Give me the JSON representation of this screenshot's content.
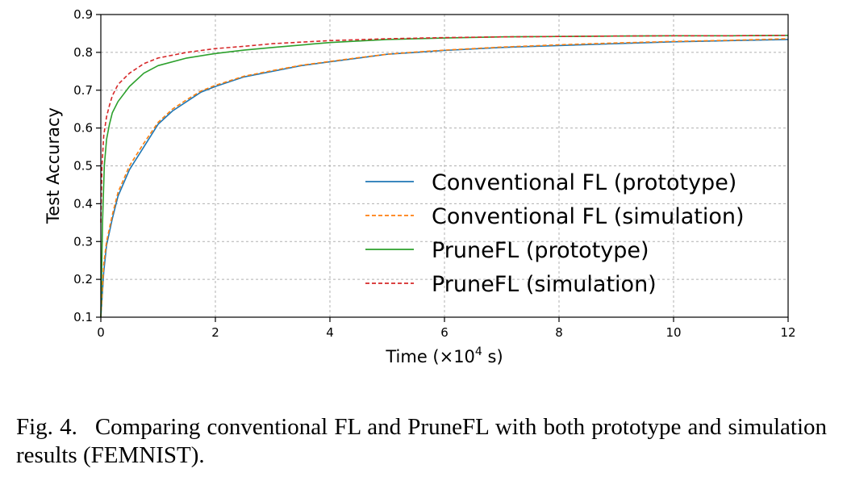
{
  "chart_data": {
    "type": "line",
    "xlabel_prefix": "Time (×10",
    "xlabel_exp": "4",
    "xlabel_suffix": " s)",
    "ylabel": "Test Accuracy",
    "xlim": [
      0,
      12
    ],
    "ylim": [
      0.1,
      0.9
    ],
    "xticks": [
      "0",
      "2",
      "4",
      "6",
      "8",
      "10",
      "12"
    ],
    "yticks": [
      "0.1",
      "0.2",
      "0.3",
      "0.4",
      "0.5",
      "0.6",
      "0.7",
      "0.8",
      "0.9"
    ],
    "grid": true,
    "legend_position": "lower-right",
    "series": [
      {
        "name": "Conventional FL (prototype)",
        "color": "#1f77b4",
        "dash": "solid",
        "x": [
          0,
          0.05,
          0.1,
          0.2,
          0.3,
          0.5,
          0.75,
          1.0,
          1.25,
          1.5,
          1.75,
          2.0,
          2.5,
          3.0,
          3.5,
          4.0,
          4.5,
          5.0,
          5.5,
          6.0,
          7.0,
          8.0,
          9.0,
          10.0,
          11.0,
          12.0
        ],
        "y": [
          0.1,
          0.22,
          0.29,
          0.36,
          0.42,
          0.49,
          0.55,
          0.61,
          0.645,
          0.67,
          0.695,
          0.71,
          0.735,
          0.75,
          0.765,
          0.775,
          0.785,
          0.795,
          0.8,
          0.805,
          0.813,
          0.818,
          0.823,
          0.828,
          0.831,
          0.834
        ]
      },
      {
        "name": "Conventional FL (simulation)",
        "color": "#ff7f0e",
        "dash": "dashed",
        "x": [
          0,
          0.05,
          0.1,
          0.2,
          0.3,
          0.5,
          0.75,
          1.0,
          1.25,
          1.5,
          1.75,
          2.0,
          2.5,
          3.0,
          3.5,
          4.0,
          4.5,
          5.0,
          5.5,
          6.0,
          7.0,
          8.0,
          9.0,
          10.0,
          11.0,
          12.0
        ],
        "y": [
          0.1,
          0.24,
          0.3,
          0.37,
          0.43,
          0.5,
          0.56,
          0.615,
          0.65,
          0.675,
          0.698,
          0.713,
          0.737,
          0.752,
          0.766,
          0.776,
          0.786,
          0.795,
          0.801,
          0.806,
          0.814,
          0.82,
          0.825,
          0.829,
          0.832,
          0.836
        ]
      },
      {
        "name": "PruneFL (prototype)",
        "color": "#2ca02c",
        "dash": "solid",
        "x": [
          0,
          0.03,
          0.06,
          0.1,
          0.15,
          0.2,
          0.3,
          0.5,
          0.75,
          1.0,
          1.5,
          2.0,
          2.5,
          3.0,
          4.0,
          5.0,
          6.0,
          7.0,
          8.0,
          9.0,
          10.0,
          11.0,
          12.0
        ],
        "y": [
          0.1,
          0.35,
          0.5,
          0.57,
          0.61,
          0.64,
          0.67,
          0.71,
          0.745,
          0.765,
          0.785,
          0.797,
          0.806,
          0.813,
          0.826,
          0.834,
          0.838,
          0.841,
          0.842,
          0.843,
          0.844,
          0.844,
          0.845
        ]
      },
      {
        "name": "PruneFL (simulation)",
        "color": "#d62728",
        "dash": "dashed",
        "x": [
          0,
          0.02,
          0.05,
          0.1,
          0.15,
          0.2,
          0.3,
          0.5,
          0.75,
          1.0,
          1.5,
          2.0,
          2.5,
          3.0,
          4.0,
          5.0,
          6.0,
          7.0,
          8.0,
          9.0,
          10.0,
          11.0,
          12.0
        ],
        "y": [
          0.35,
          0.5,
          0.58,
          0.63,
          0.66,
          0.685,
          0.715,
          0.745,
          0.77,
          0.785,
          0.8,
          0.81,
          0.816,
          0.823,
          0.831,
          0.836,
          0.839,
          0.841,
          0.842,
          0.843,
          0.844,
          0.844,
          0.845
        ]
      }
    ]
  },
  "caption": {
    "label": "Fig. 4.",
    "text": "Comparing conventional FL and PruneFL with both prototype and simulation results (FEMNIST)."
  }
}
